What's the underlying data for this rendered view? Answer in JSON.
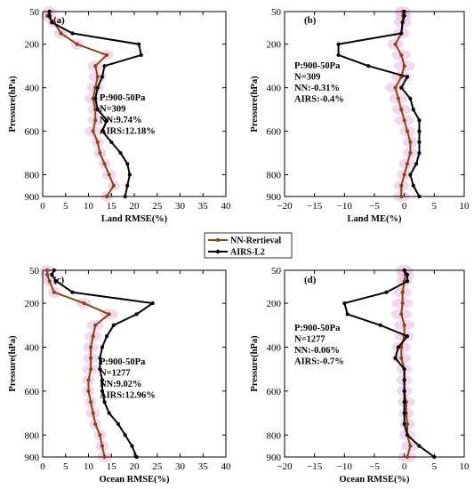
{
  "legend": {
    "nn": "NN-Rertieval",
    "airs": "AIRS-L2"
  },
  "colors": {
    "nn": "#8B4513",
    "airs": "#000000",
    "shade": "#e8b7e3"
  },
  "chart_data": [
    {
      "type": "line",
      "panel_label": "(a)",
      "xlabel": "Land RMSE(%)",
      "ylabel": "Pressure(hPa)",
      "xlim": [
        0,
        40
      ],
      "ylim": [
        50,
        900
      ],
      "y_inverted": true,
      "xticks": [
        0,
        5,
        10,
        15,
        20,
        25,
        30,
        35,
        40
      ],
      "yticks": [
        50,
        200,
        400,
        600,
        800,
        900
      ],
      "stats": [
        "P:900-50Pa",
        "N=309",
        "NN:9.74%",
        "AIRS:12.18%"
      ],
      "series": [
        {
          "name": "NN-Rertieval",
          "y": [
            50,
            70,
            100,
            150,
            200,
            250,
            300,
            350,
            400,
            450,
            500,
            550,
            600,
            650,
            700,
            750,
            800,
            850,
            900
          ],
          "x": [
            1.5,
            1.0,
            2.5,
            4.0,
            7.5,
            14.0,
            11.5,
            12.0,
            11.5,
            11.0,
            11.5,
            11.5,
            11.0,
            12.0,
            12.5,
            13.5,
            14.5,
            15.5,
            14.0
          ]
        },
        {
          "name": "AIRS-L2",
          "y": [
            50,
            70,
            100,
            150,
            200,
            250,
            300,
            350,
            400,
            450,
            500,
            550,
            600,
            650,
            700,
            750,
            800,
            850,
            900
          ],
          "x": [
            1.5,
            1.5,
            2.0,
            6.5,
            21.0,
            21.5,
            13.5,
            13.0,
            12.0,
            11.5,
            12.0,
            14.0,
            13.0,
            15.0,
            17.0,
            18.5,
            19.0,
            18.5,
            18.0
          ]
        }
      ]
    },
    {
      "type": "line",
      "panel_label": "(b)",
      "xlabel": "Land ME(%)",
      "ylabel": "Pressure(hPa)",
      "xlim": [
        -20,
        10
      ],
      "ylim": [
        50,
        900
      ],
      "y_inverted": true,
      "xticks": [
        -20,
        -15,
        -10,
        -5,
        0,
        5,
        10
      ],
      "yticks": [
        50,
        200,
        400,
        600,
        800,
        900
      ],
      "stats": [
        "P:900-50Pa",
        "N=309",
        "NN:-0.31%",
        "AIRS:-0.4%"
      ],
      "series": [
        {
          "name": "NN-Rertieval",
          "y": [
            50,
            70,
            100,
            150,
            200,
            250,
            300,
            350,
            400,
            450,
            500,
            550,
            600,
            650,
            700,
            750,
            800,
            850,
            900
          ],
          "x": [
            -0.3,
            -0.2,
            -0.3,
            -0.5,
            -1.5,
            -0.5,
            0.0,
            -0.5,
            -1.5,
            -1.0,
            -0.5,
            0.0,
            0.5,
            1.0,
            1.0,
            0.5,
            0.0,
            -0.5,
            -0.5
          ]
        },
        {
          "name": "AIRS-L2",
          "y": [
            50,
            70,
            100,
            150,
            200,
            250,
            300,
            350,
            400,
            450,
            500,
            550,
            600,
            650,
            700,
            750,
            800,
            850,
            900
          ],
          "x": [
            0.0,
            0.0,
            -0.3,
            -0.5,
            -11.0,
            -11.0,
            -6.0,
            0.5,
            -0.5,
            1.0,
            1.5,
            2.5,
            2.5,
            2.5,
            2.5,
            2.0,
            1.0,
            1.5,
            2.5
          ]
        }
      ]
    },
    {
      "type": "line",
      "panel_label": "(c)",
      "xlabel": "Ocean RMSE(%)",
      "ylabel": "Pressure(hPa)",
      "xlim": [
        0,
        40
      ],
      "ylim": [
        50,
        900
      ],
      "y_inverted": true,
      "xticks": [
        0,
        5,
        10,
        15,
        20,
        25,
        30,
        35,
        40
      ],
      "yticks": [
        50,
        200,
        400,
        600,
        800,
        900
      ],
      "stats": [
        "P:900-50Pa",
        "N=1277",
        "NN:9.02%",
        "AIRS:12.96%"
      ],
      "series": [
        {
          "name": "NN-Rertieval",
          "y": [
            50,
            70,
            100,
            150,
            200,
            250,
            300,
            350,
            400,
            450,
            500,
            550,
            600,
            650,
            700,
            750,
            800,
            850,
            900
          ],
          "x": [
            1.0,
            1.0,
            1.5,
            2.5,
            9.0,
            14.5,
            11.5,
            11.0,
            10.5,
            10.5,
            10.5,
            10.0,
            10.0,
            10.5,
            11.0,
            11.5,
            12.5,
            13.0,
            13.5
          ]
        },
        {
          "name": "AIRS-L2",
          "y": [
            50,
            70,
            100,
            150,
            200,
            250,
            300,
            350,
            400,
            450,
            500,
            550,
            600,
            650,
            700,
            750,
            800,
            850,
            900
          ],
          "x": [
            2.5,
            2.0,
            3.0,
            6.5,
            24.0,
            20.5,
            15.5,
            14.0,
            13.0,
            12.5,
            12.5,
            13.0,
            13.0,
            13.5,
            14.5,
            16.5,
            18.0,
            19.5,
            20.5
          ]
        }
      ]
    },
    {
      "type": "line",
      "panel_label": "(d)",
      "xlabel": "Ocean RMSE(%)",
      "ylabel": "Pressure(hPa)",
      "xlim": [
        -20,
        10
      ],
      "ylim": [
        50,
        900
      ],
      "y_inverted": true,
      "xticks": [
        -20,
        -15,
        -10,
        -5,
        0,
        5,
        10
      ],
      "yticks": [
        50,
        200,
        400,
        600,
        800,
        900
      ],
      "stats": [
        "P:900-50Pa",
        "N=1277",
        "NN:-0.06%",
        "AIRS:-0.7%"
      ],
      "series": [
        {
          "name": "NN-Rertieval",
          "y": [
            50,
            70,
            100,
            150,
            200,
            250,
            300,
            350,
            400,
            450,
            500,
            550,
            600,
            650,
            700,
            750,
            800,
            850,
            900
          ],
          "x": [
            0.0,
            0.2,
            0.0,
            -0.3,
            -0.3,
            -0.5,
            0.0,
            0.0,
            -0.5,
            -0.5,
            0.0,
            0.0,
            0.0,
            0.3,
            0.3,
            0.5,
            0.5,
            1.0,
            0.5
          ]
        },
        {
          "name": "AIRS-L2",
          "y": [
            50,
            70,
            100,
            150,
            200,
            250,
            300,
            350,
            400,
            450,
            500,
            550,
            600,
            650,
            700,
            750,
            800,
            850,
            900
          ],
          "x": [
            0.0,
            0.5,
            0.5,
            -3.0,
            -10.0,
            -9.5,
            -4.0,
            0.5,
            -1.0,
            -1.5,
            0.0,
            0.0,
            0.0,
            0.0,
            0.0,
            0.0,
            0.5,
            2.5,
            5.0
          ]
        }
      ]
    }
  ]
}
